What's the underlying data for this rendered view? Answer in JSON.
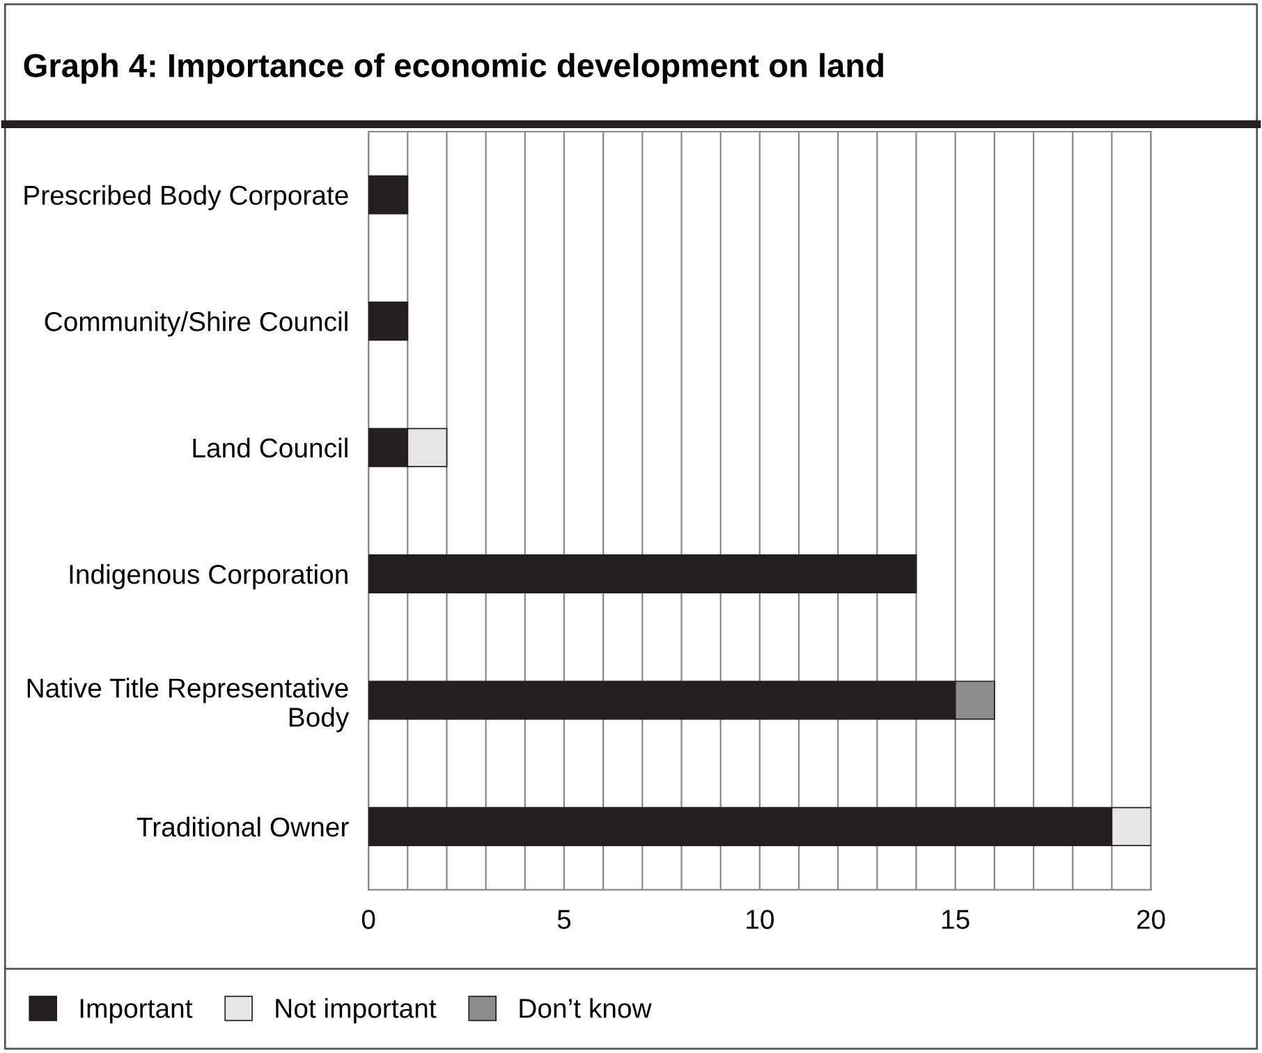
{
  "chart_data": {
    "type": "bar",
    "orientation": "horizontal",
    "stacked": true,
    "title": "Graph 4: Importance of economic development on land",
    "categories": [
      "Prescribed Body Corporate",
      "Community/Shire Council",
      "Land Council",
      "Indigenous Corporation",
      "Native Title Representative Body",
      "Traditional Owner"
    ],
    "series": [
      {
        "name": "Important",
        "color": "#231f20",
        "values": [
          1,
          1,
          1,
          14,
          15,
          19
        ]
      },
      {
        "name": "Not important",
        "color": "#e6e6e6",
        "values": [
          null,
          null,
          1,
          null,
          null,
          1
        ]
      },
      {
        "name": "Don’t know",
        "color": "#8c8c8c",
        "values": [
          null,
          null,
          null,
          null,
          1,
          null
        ]
      }
    ],
    "xlim": [
      0,
      20
    ],
    "xticks": [
      0,
      {
        "value": 1,
        "label": null
      },
      {
        "value": 2,
        "label": null
      },
      {
        "value": 3,
        "label": null
      },
      {
        "value": 4,
        "label": null
      },
      5,
      {
        "value": 6,
        "label": null
      },
      {
        "value": 7,
        "label": null
      },
      {
        "value": 8,
        "label": null
      },
      {
        "value": 9,
        "label": null
      },
      10,
      {
        "value": 11,
        "label": null
      },
      {
        "value": 12,
        "label": null
      },
      {
        "value": 13,
        "label": null
      },
      {
        "value": 14,
        "label": null
      },
      15,
      {
        "value": 16,
        "label": null
      },
      {
        "value": 17,
        "label": null
      },
      {
        "value": 18,
        "label": null
      },
      {
        "value": 19,
        "label": null
      },
      20
    ],
    "grid": "x",
    "legend": "bottom"
  }
}
